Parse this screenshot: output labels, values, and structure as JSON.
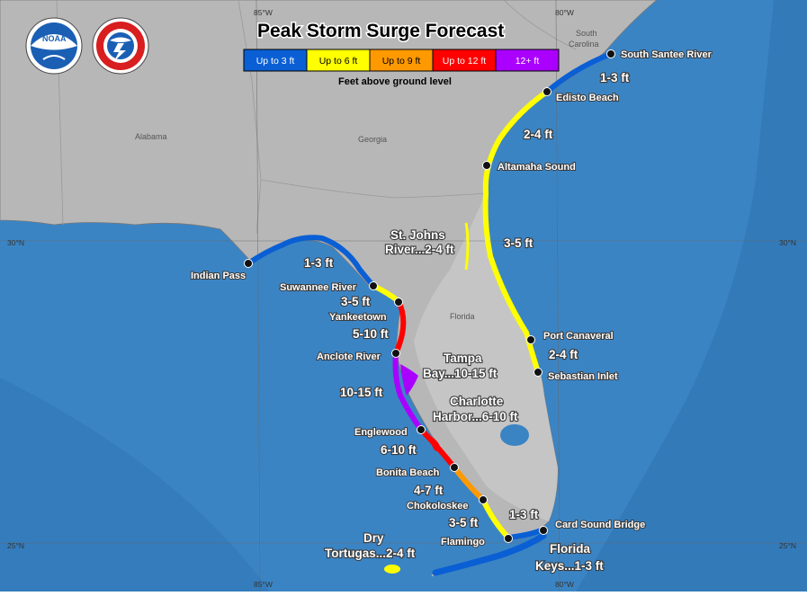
{
  "title": "Peak Storm Surge Forecast",
  "legend": {
    "items": [
      {
        "label": "Up to 3 ft",
        "color": "#0a5fd4",
        "text": "#ffffff"
      },
      {
        "label": "Up to 6 ft",
        "color": "#ffff00",
        "text": "#000000"
      },
      {
        "label": "Up to 9 ft",
        "color": "#ff9900",
        "text": "#000000"
      },
      {
        "label": "Up to 12 ft",
        "color": "#ff0000",
        "text": "#ffffff"
      },
      {
        "label": "12+ ft",
        "color": "#aa00ff",
        "text": "#ffffff"
      }
    ],
    "subtitle": "Feet above ground level"
  },
  "logos": {
    "noaa": "NOAA",
    "nws": "NATIONAL WEATHER SERVICE"
  },
  "gridlines": {
    "lon": [
      "85°W",
      "80°W"
    ],
    "lat": [
      "30°N",
      "25°N"
    ]
  },
  "states": [
    "Alabama",
    "Georgia",
    "Florida",
    "South Carolina"
  ],
  "colors": {
    "water": "#3b84c4",
    "land": "#b7b7b7",
    "shelf": "#5a9bd3"
  },
  "locations": [
    "South Santee River",
    "Edisto Beach",
    "Altamaha Sound",
    "Port Canaveral",
    "Sebastian Inlet",
    "Card Sound Bridge",
    "Indian Pass",
    "Suwannee River",
    "Yankeetown",
    "Anclote River",
    "Englewood",
    "Bonita Beach",
    "Chokoloskee",
    "Flamingo"
  ],
  "segments": [
    "1-3 ft",
    "2-4 ft",
    "3-5 ft",
    "2-4 ft",
    "1-3 ft",
    "3-5 ft",
    "5-10 ft",
    "10-15 ft",
    "6-10 ft",
    "4-7 ft",
    "3-5 ft"
  ],
  "areas": [
    {
      "line1": "St. Johns",
      "line2": "River...2-4 ft"
    },
    {
      "line1": "Tampa",
      "line2": "Bay...10-15 ft"
    },
    {
      "line1": "Charlotte",
      "line2": "Harbor...6-10 ft"
    },
    {
      "line1": "Dry",
      "line2": "Tortugas...2-4 ft"
    },
    {
      "line1": "Florida",
      "line2": "Keys...1-3 ft"
    }
  ]
}
